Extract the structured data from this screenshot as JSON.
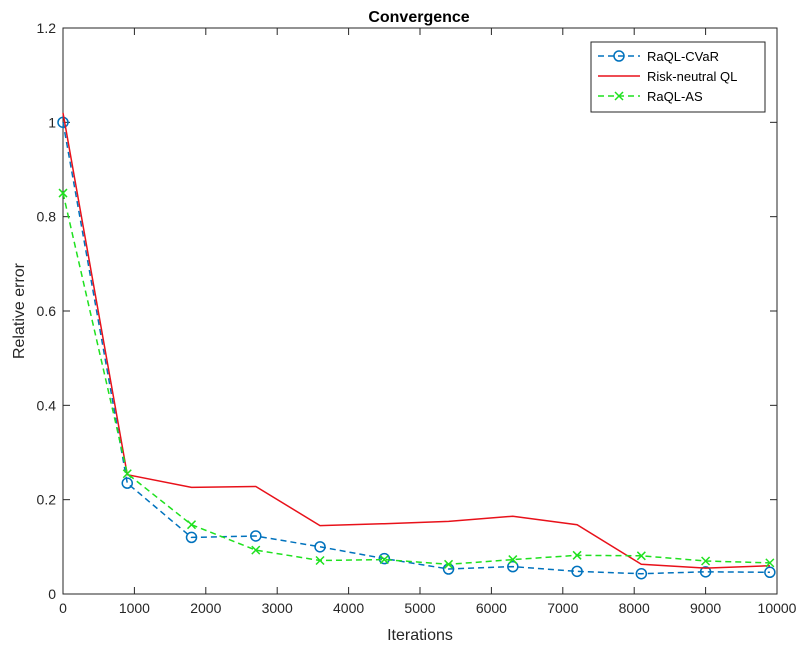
{
  "chart_data": {
    "type": "line",
    "title": "Convergence",
    "xlabel": "Iterations",
    "ylabel": "Relative error",
    "xlim": [
      0,
      10000
    ],
    "ylim": [
      0,
      1.2
    ],
    "xticks": [
      0,
      1000,
      2000,
      3000,
      4000,
      5000,
      6000,
      7000,
      8000,
      9000,
      10000
    ],
    "yticks": [
      0,
      0.2,
      0.4,
      0.6,
      0.8,
      1,
      1.2
    ],
    "x": [
      0,
      900,
      1800,
      2700,
      3600,
      4500,
      5400,
      6300,
      7200,
      8100,
      9000,
      9900
    ],
    "grid": false,
    "legend_position": "top-right",
    "series": [
      {
        "name": "RaQL-CVaR",
        "color": "#0072BD",
        "line_style": "dashed",
        "marker": "circle",
        "values": [
          1.0,
          0.235,
          0.12,
          0.123,
          0.1,
          0.075,
          0.053,
          0.058,
          0.048,
          0.043,
          0.047,
          0.046
        ]
      },
      {
        "name": "Risk-neutral QL",
        "color": "#E8111A",
        "line_style": "solid",
        "marker": "none",
        "values": [
          1.02,
          0.253,
          0.226,
          0.228,
          0.145,
          0.149,
          0.154,
          0.165,
          0.147,
          0.063,
          0.055,
          0.06
        ]
      },
      {
        "name": "RaQL-AS",
        "color": "#1FE11F",
        "line_style": "dashed",
        "marker": "x",
        "values": [
          0.85,
          0.255,
          0.147,
          0.093,
          0.071,
          0.073,
          0.063,
          0.073,
          0.082,
          0.081,
          0.07,
          0.066
        ]
      }
    ]
  }
}
